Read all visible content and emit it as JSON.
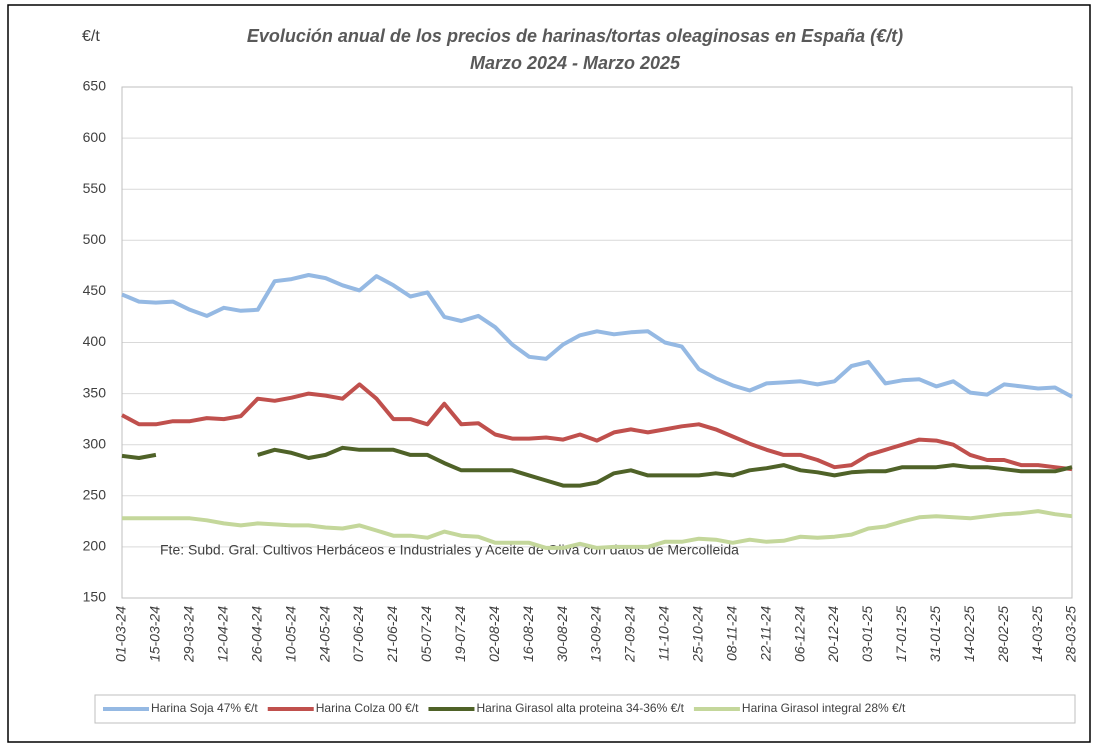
{
  "chart_data": {
    "type": "line",
    "title": "Evolución anual de los precios de harinas/tortas oleaginosas en España (€/t)",
    "subtitle": "Marzo 2024 - Marzo 2025",
    "y_label": "€/t",
    "annotation": "Fte: Subd. Gral. Cultivos Herbáceos e Industriales y Aceite de Oliva con datos de Mercolleida",
    "categories": [
      "01-03-24",
      null,
      "15-03-24",
      null,
      "29-03-24",
      null,
      "12-04-24",
      null,
      "26-04-24",
      null,
      "10-05-24",
      null,
      "24-05-24",
      null,
      "07-06-24",
      null,
      "21-06-24",
      null,
      "05-07-24",
      null,
      "19-07-24",
      null,
      "02-08-24",
      null,
      "16-08-24",
      null,
      "30-08-24",
      null,
      "13-09-24",
      null,
      "27-09-24",
      null,
      "11-10-24",
      null,
      "25-10-24",
      null,
      "08-11-24",
      null,
      "22-11-24",
      null,
      "06-12-24",
      null,
      "20-12-24",
      null,
      "03-01-25",
      null,
      "17-01-25",
      null,
      "31-01-25",
      null,
      "14-02-25",
      null,
      "28-02-25",
      null,
      "14-03-25",
      null,
      "28-03-25"
    ],
    "series": [
      {
        "name": "Harina Soja  47% €/t",
        "color": "#95b9e3",
        "values": [
          447,
          440,
          439,
          440,
          432,
          426,
          434,
          431,
          432,
          460,
          462,
          466,
          463,
          456,
          451,
          465,
          456,
          445,
          449,
          425,
          421,
          426,
          415,
          398,
          386,
          384,
          398,
          407,
          411,
          408,
          410,
          411,
          400,
          396,
          374,
          365,
          358,
          353,
          360,
          361,
          362,
          359,
          362,
          377,
          381,
          360,
          363,
          364,
          357,
          362,
          351,
          349,
          359,
          357,
          355,
          356,
          347
        ]
      },
      {
        "name": "Harina Colza 00 €/t",
        "color": "#c0504d",
        "values": [
          329,
          320,
          320,
          323,
          323,
          326,
          325,
          328,
          345,
          343,
          346,
          350,
          348,
          345,
          359,
          345,
          325,
          325,
          320,
          340,
          320,
          321,
          310,
          306,
          306,
          307,
          305,
          310,
          304,
          312,
          315,
          312,
          315,
          318,
          320,
          315,
          308,
          301,
          295,
          290,
          290,
          285,
          278,
          280,
          290,
          295,
          300,
          305,
          304,
          300,
          290,
          285,
          285,
          280,
          280,
          278,
          276
        ]
      },
      {
        "name": "Harina Girasol alta proteina 34-36% €/t",
        "color": "#4f6228",
        "values": [
          289,
          287,
          290,
          null,
          null,
          null,
          null,
          null,
          290,
          295,
          292,
          287,
          290,
          297,
          295,
          295,
          295,
          290,
          290,
          282,
          275,
          275,
          275,
          275,
          270,
          265,
          260,
          260,
          263,
          272,
          275,
          270,
          270,
          270,
          270,
          272,
          270,
          275,
          277,
          280,
          275,
          273,
          270,
          273,
          274,
          274,
          278,
          278,
          278,
          280,
          278,
          278,
          276,
          274,
          274,
          274,
          278
        ]
      },
      {
        "name": "Harina Girasol integral 28% €/t",
        "color": "#c4d79b",
        "values": [
          228,
          228,
          228,
          228,
          228,
          226,
          223,
          221,
          223,
          222,
          221,
          221,
          219,
          218,
          221,
          216,
          211,
          211,
          209,
          215,
          211,
          210,
          204,
          204,
          204,
          199,
          199,
          203,
          199,
          200,
          200,
          200,
          205,
          205,
          208,
          207,
          204,
          207,
          205,
          206,
          210,
          209,
          210,
          212,
          218,
          220,
          225,
          229,
          230,
          229,
          228,
          230,
          232,
          233,
          235,
          232,
          230
        ]
      }
    ],
    "ylim": [
      150,
      650
    ],
    "yticks": [
      150,
      200,
      250,
      300,
      350,
      400,
      450,
      500,
      550,
      600,
      650
    ],
    "grid": true
  }
}
